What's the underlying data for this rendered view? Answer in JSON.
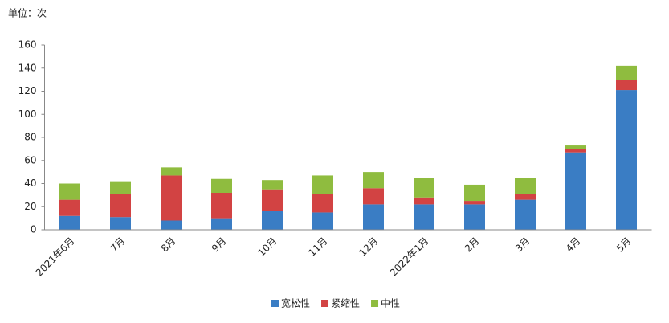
{
  "chart_data": {
    "type": "stacked_bar",
    "unit_label": "单位：次",
    "categories": [
      "2021年6月",
      "7月",
      "8月",
      "9月",
      "10月",
      "11月",
      "12月",
      "2022年1月",
      "2月",
      "3月",
      "4月",
      "5月"
    ],
    "series": [
      {
        "name": "宽松性",
        "color": "#3a7dc4",
        "values": [
          12,
          11,
          8,
          10,
          16,
          15,
          22,
          22,
          22,
          26,
          67,
          121
        ]
      },
      {
        "name": "紧缩性",
        "color": "#d24343",
        "values": [
          14,
          20,
          39,
          22,
          19,
          16,
          14,
          6,
          3,
          5,
          3,
          9
        ]
      },
      {
        "name": "中性",
        "color": "#8fbc3f",
        "values": [
          14,
          11,
          7,
          12,
          8,
          16,
          14,
          17,
          14,
          14,
          3,
          12
        ]
      }
    ],
    "ylim": [
      0,
      160
    ],
    "yticks": [
      0,
      20,
      40,
      60,
      80,
      100,
      120,
      140,
      160
    ],
    "grid": false,
    "legend": "bottom"
  }
}
